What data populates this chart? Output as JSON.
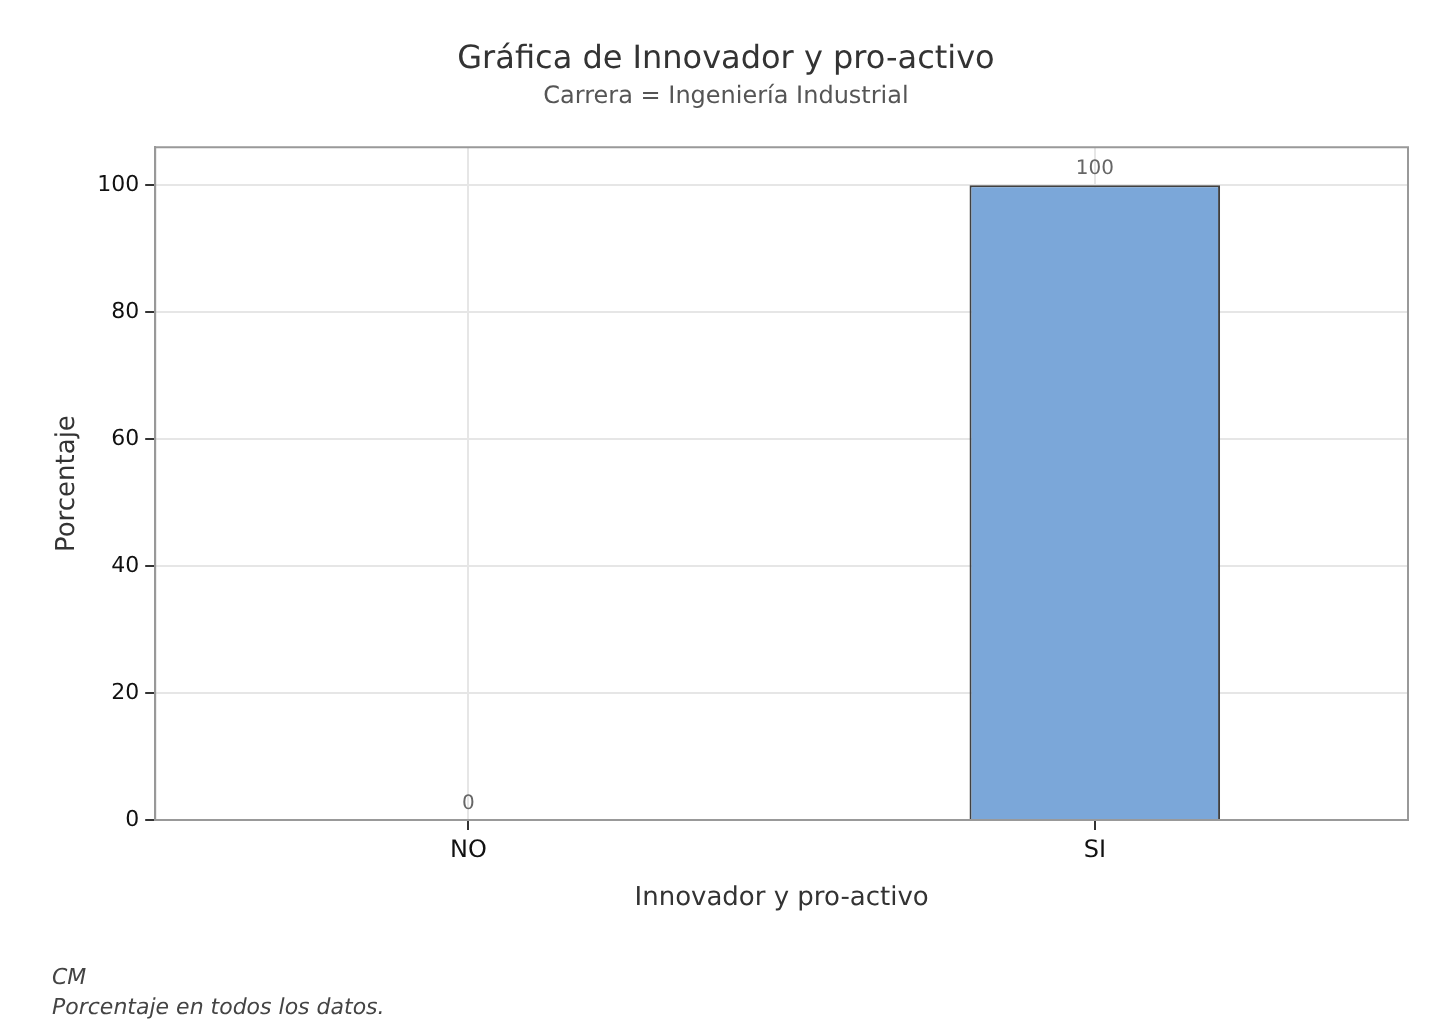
{
  "chart_data": {
    "type": "bar",
    "title": "Gráfica de Innovador y pro-activo",
    "subtitle": "Carrera = Ingeniería Industrial",
    "xlabel": "Innovador y pro-activo",
    "ylabel": "Porcentaje",
    "categories": [
      "NO",
      "SI"
    ],
    "values": [
      0,
      100
    ],
    "color": "#7ba7d9",
    "ylim": [
      0,
      106
    ],
    "yticks": [
      0,
      20,
      40,
      60,
      80,
      100
    ],
    "grid": true,
    "data_labels": true,
    "annotations": [
      "CM",
      "Porcentaje en todos los datos."
    ]
  }
}
